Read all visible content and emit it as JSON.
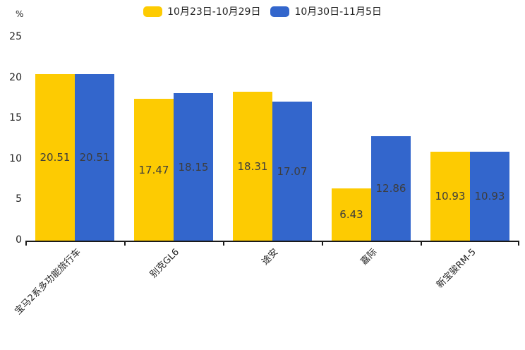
{
  "chart_data": {
    "type": "bar",
    "title": "",
    "unit_label": "%",
    "xlabel": "",
    "ylabel": "%",
    "categories": [
      "宝马2系多功能旅行车",
      "别克GL6",
      "途安",
      "嘉际",
      "新宝骏RM-5"
    ],
    "series": [
      {
        "name": "10月23日-10月29日",
        "color": "#FDCB02",
        "values": [
          20.51,
          17.47,
          18.31,
          6.43,
          10.93
        ]
      },
      {
        "name": "10月30日-11月5日",
        "color": "#3366CC",
        "values": [
          20.51,
          18.15,
          17.07,
          12.86,
          10.93
        ]
      }
    ],
    "value_labels": {
      "series_0": [
        "20.51",
        "17.47",
        "18.31",
        "6.43",
        "10.93"
      ],
      "series_1": [
        "20.51",
        "18.15",
        "17.07",
        "12.86",
        "10.93"
      ]
    },
    "ylim": [
      0,
      25
    ],
    "yticks": [
      "0",
      "5",
      "10",
      "15",
      "20",
      "25"
    ],
    "grid": false,
    "legend_position": "top",
    "x_tick_rotation_deg": 45,
    "colors": {
      "series1": "#FDCB02",
      "series2": "#3366CC",
      "axis": "#1a1a1a",
      "axis_text": "#222222",
      "bar_value_text": "#3d3d3d",
      "background": "#ffffff"
    }
  }
}
